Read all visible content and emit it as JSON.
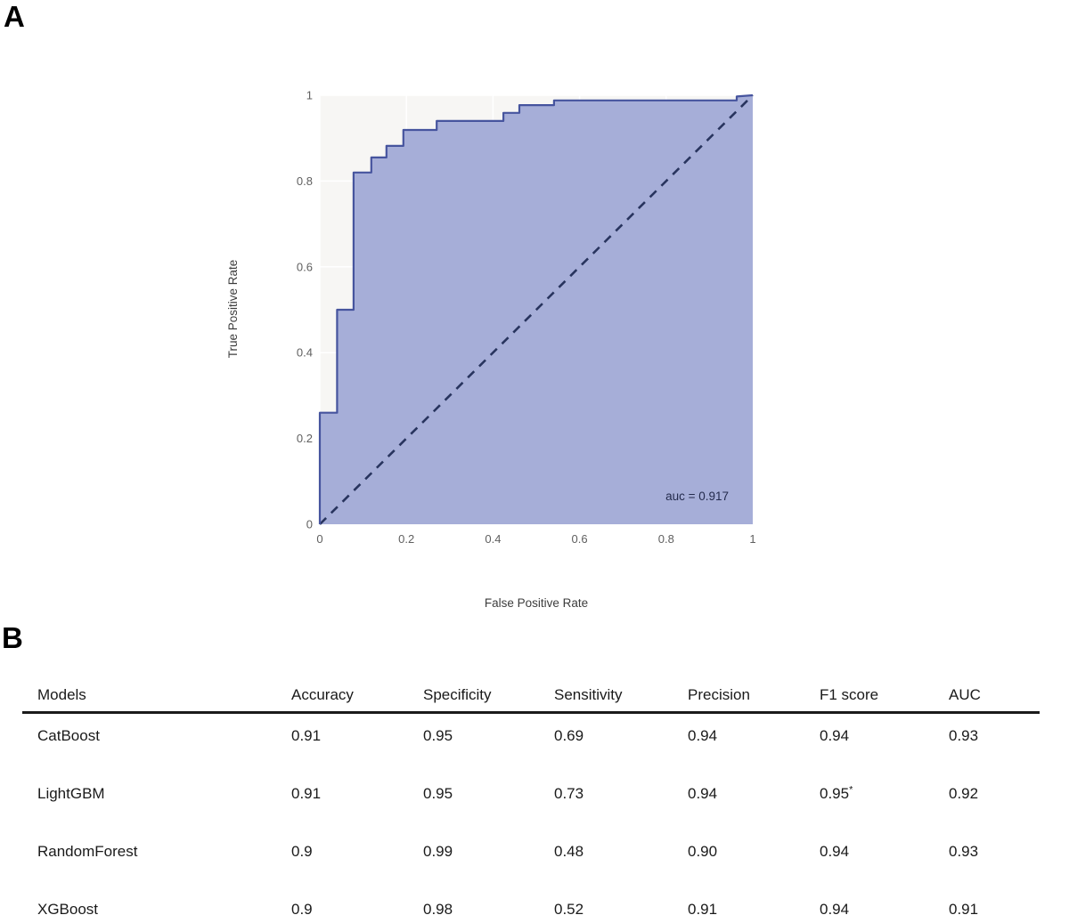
{
  "figure": {
    "panel_a_label": "A",
    "panel_b_label": "B"
  },
  "chart_data": {
    "type": "line",
    "subtype": "roc-step-curve-with-area",
    "title": "",
    "xlabel": "False Positive Rate",
    "ylabel": "True Positive Rate",
    "xlim": [
      0,
      1
    ],
    "ylim": [
      0,
      1
    ],
    "ticks": [
      0,
      0.2,
      0.4,
      0.6,
      0.8,
      1
    ],
    "grid": true,
    "legend": "none",
    "annotation": "auc = 0.917",
    "auc": 0.917,
    "series": [
      {
        "name": "ROC curve",
        "points": [
          [
            0,
            0
          ],
          [
            0,
            0.26
          ],
          [
            0.04,
            0.26
          ],
          [
            0.04,
            0.5
          ],
          [
            0.078,
            0.5
          ],
          [
            0.078,
            0.82
          ],
          [
            0.119,
            0.82
          ],
          [
            0.119,
            0.855
          ],
          [
            0.154,
            0.855
          ],
          [
            0.154,
            0.882
          ],
          [
            0.193,
            0.882
          ],
          [
            0.193,
            0.919
          ],
          [
            0.27,
            0.919
          ],
          [
            0.27,
            0.94
          ],
          [
            0.424,
            0.94
          ],
          [
            0.424,
            0.959
          ],
          [
            0.461,
            0.959
          ],
          [
            0.461,
            0.977
          ],
          [
            0.541,
            0.977
          ],
          [
            0.541,
            0.988
          ],
          [
            0.963,
            0.988
          ],
          [
            0.963,
            0.997
          ],
          [
            1,
            1
          ]
        ]
      }
    ],
    "reference_line": {
      "style": "dashed",
      "from": [
        0,
        0
      ],
      "to": [
        1,
        1
      ]
    },
    "colors": {
      "area_fill": "#a6aed8",
      "curve_stroke": "#46549e",
      "reference": "#28345e",
      "plot_background": "#f7f6f4",
      "gridline": "#ffffff",
      "tick_text": "#5f5f5f",
      "axis_text": "#3d3d3d",
      "annotation_text": "#242b4d"
    }
  },
  "table": {
    "headers": [
      "Models",
      "Accuracy",
      "Specificity",
      "Sensitivity",
      "Precision",
      "F1 score",
      "AUC"
    ],
    "rows": [
      {
        "model": "CatBoost",
        "accuracy": "0.91",
        "specificity": "0.95",
        "sensitivity": "0.69",
        "precision": "0.94",
        "f1": "0.94",
        "f1_note": "",
        "auc": "0.93"
      },
      {
        "model": "LightGBM",
        "accuracy": "0.91",
        "specificity": "0.95",
        "sensitivity": "0.73",
        "precision": "0.94",
        "f1": "0.95",
        "f1_note": "*",
        "auc": "0.92"
      },
      {
        "model": "RandomForest",
        "accuracy": "0.9",
        "specificity": "0.99",
        "sensitivity": "0.48",
        "precision": "0.90",
        "f1": "0.94",
        "f1_note": "",
        "auc": "0.93"
      },
      {
        "model": "XGBoost",
        "accuracy": "0.9",
        "specificity": "0.98",
        "sensitivity": "0.52",
        "precision": "0.91",
        "f1": "0.94",
        "f1_note": "",
        "auc": "0.91"
      }
    ]
  }
}
